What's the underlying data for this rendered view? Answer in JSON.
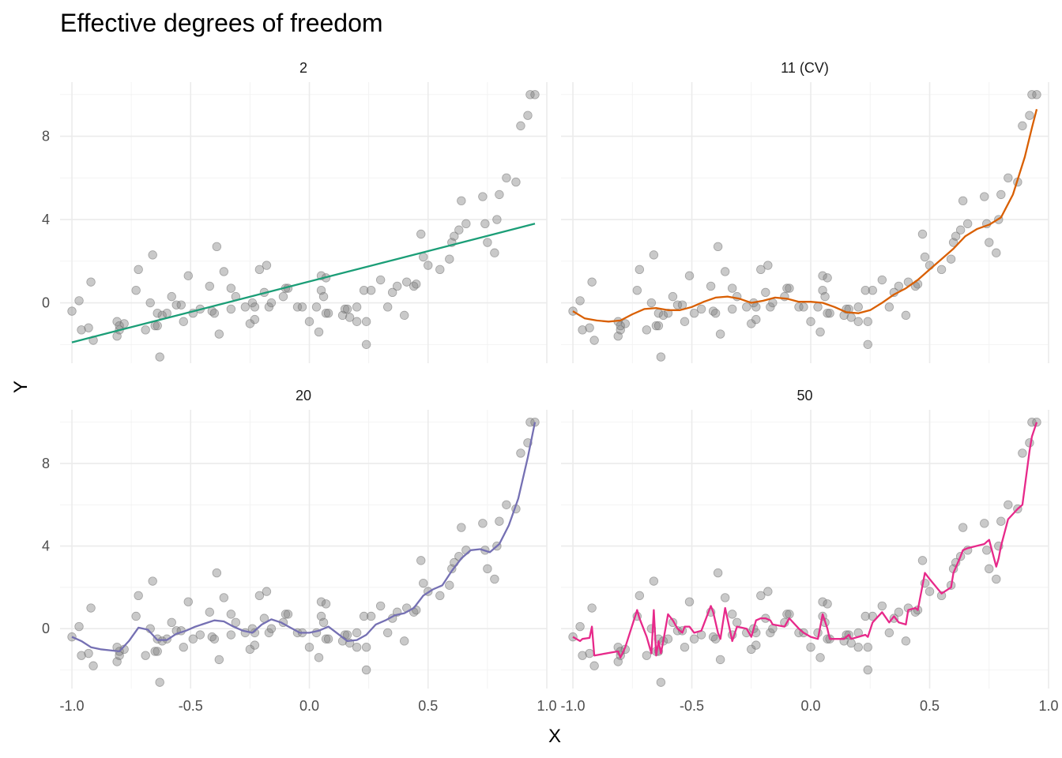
{
  "chart_data": {
    "type": "scatter",
    "title": "Effective degrees of freedom",
    "xlabel": "X",
    "ylabel": "Y",
    "xlim": [
      -1.05,
      1.0
    ],
    "ylim": [
      -2.9,
      10.6
    ],
    "x_ticks": [
      -1.0,
      -0.5,
      0.0,
      0.5,
      1.0
    ],
    "x_tick_labels": [
      "-1.0",
      "-0.5",
      "0.0",
      "0.5",
      "1.0"
    ],
    "y_ticks": [
      0,
      4,
      8
    ],
    "y_tick_labels": [
      "0",
      "4",
      "8"
    ],
    "grid": true,
    "legend": "none",
    "points": {
      "x": [
        -1.0,
        -0.97,
        -0.96,
        -0.93,
        -0.92,
        -0.91,
        -0.81,
        -0.81,
        -0.8,
        -0.8,
        -0.78,
        -0.73,
        -0.72,
        -0.69,
        -0.67,
        -0.66,
        -0.65,
        -0.64,
        -0.64,
        -0.63,
        -0.62,
        -0.6,
        -0.58,
        -0.56,
        -0.54,
        -0.53,
        -0.51,
        -0.49,
        -0.46,
        -0.42,
        -0.41,
        -0.4,
        -0.39,
        -0.38,
        -0.36,
        -0.33,
        -0.33,
        -0.31,
        -0.27,
        -0.25,
        -0.24,
        -0.23,
        -0.23,
        -0.21,
        -0.19,
        -0.18,
        -0.17,
        -0.16,
        -0.11,
        -0.1,
        -0.09,
        -0.05,
        -0.03,
        -0.0,
        0.03,
        0.04,
        0.05,
        0.05,
        0.06,
        0.07,
        0.07,
        0.08,
        0.14,
        0.15,
        0.16,
        0.17,
        0.2,
        0.2,
        0.23,
        0.24,
        0.24,
        0.26,
        0.3,
        0.33,
        0.35,
        0.37,
        0.4,
        0.41,
        0.44,
        0.45,
        0.47,
        0.48,
        0.5,
        0.55,
        0.59,
        0.6,
        0.61,
        0.63,
        0.64,
        0.66,
        0.73,
        0.74,
        0.75,
        0.78,
        0.79,
        0.8,
        0.83,
        0.87,
        0.89,
        0.92,
        0.93,
        0.95
      ],
      "y": [
        -0.4,
        0.1,
        -1.3,
        -1.2,
        1.0,
        -1.8,
        -1.6,
        -0.9,
        -1.3,
        -1.1,
        -1.0,
        0.6,
        1.6,
        -1.3,
        0.0,
        2.3,
        -1.1,
        -1.1,
        -0.5,
        -2.6,
        -0.6,
        -0.5,
        0.3,
        -0.1,
        -0.1,
        -0.9,
        1.3,
        -0.5,
        -0.3,
        0.8,
        -0.4,
        -0.5,
        2.7,
        -1.5,
        1.5,
        -0.3,
        0.7,
        0.3,
        -0.2,
        -1.0,
        0.0,
        -0.2,
        -0.8,
        1.6,
        0.5,
        1.8,
        -0.2,
        0.0,
        0.3,
        0.7,
        0.7,
        -0.2,
        -0.2,
        -0.9,
        -0.2,
        -1.4,
        1.3,
        0.6,
        0.3,
        1.2,
        -0.5,
        -0.5,
        -0.6,
        -0.3,
        -0.3,
        -0.7,
        -0.2,
        -0.9,
        0.6,
        -2.0,
        -0.9,
        0.6,
        1.1,
        -0.2,
        0.5,
        0.8,
        -0.6,
        1.0,
        0.8,
        0.9,
        3.3,
        2.2,
        1.8,
        1.6,
        2.1,
        2.9,
        3.2,
        3.5,
        4.9,
        3.8,
        5.1,
        3.8,
        2.9,
        2.4,
        4.0,
        5.2,
        6.0,
        5.8,
        8.5,
        9.0,
        10.0,
        10.0
      ]
    },
    "facets": [
      {
        "label": "2",
        "color": "#1b9e77",
        "fit_x": [
          -1.0,
          0.95
        ],
        "fit_y": [
          -1.9,
          3.8
        ]
      },
      {
        "label": "11 (CV)",
        "color": "#d95f02",
        "fit_x": [
          -1.0,
          -0.95,
          -0.9,
          -0.85,
          -0.8,
          -0.75,
          -0.7,
          -0.65,
          -0.6,
          -0.55,
          -0.5,
          -0.45,
          -0.4,
          -0.35,
          -0.3,
          -0.25,
          -0.2,
          -0.15,
          -0.1,
          -0.05,
          0.0,
          0.05,
          0.1,
          0.15,
          0.2,
          0.25,
          0.3,
          0.35,
          0.4,
          0.45,
          0.5,
          0.55,
          0.6,
          0.65,
          0.7,
          0.75,
          0.8,
          0.85,
          0.9,
          0.93,
          0.95
        ],
        "fit_y": [
          -0.4,
          -0.75,
          -0.85,
          -0.9,
          -0.85,
          -0.55,
          -0.3,
          -0.25,
          -0.35,
          -0.35,
          -0.2,
          0.05,
          0.25,
          0.3,
          0.2,
          0.0,
          0.1,
          0.25,
          0.2,
          0.05,
          0.05,
          0.0,
          -0.2,
          -0.45,
          -0.5,
          -0.35,
          0.0,
          0.4,
          0.7,
          1.1,
          1.6,
          2.1,
          2.6,
          3.2,
          3.55,
          3.75,
          4.1,
          5.2,
          7.0,
          8.4,
          9.3
        ]
      },
      {
        "label": "20",
        "color": "#7570b3",
        "fit_x": [
          -1.0,
          -0.96,
          -0.92,
          -0.88,
          -0.84,
          -0.8,
          -0.76,
          -0.72,
          -0.68,
          -0.64,
          -0.6,
          -0.56,
          -0.52,
          -0.48,
          -0.44,
          -0.4,
          -0.36,
          -0.32,
          -0.28,
          -0.24,
          -0.2,
          -0.16,
          -0.12,
          -0.08,
          -0.04,
          0.0,
          0.04,
          0.08,
          0.12,
          0.16,
          0.2,
          0.24,
          0.28,
          0.32,
          0.36,
          0.4,
          0.44,
          0.48,
          0.52,
          0.56,
          0.6,
          0.64,
          0.68,
          0.72,
          0.76,
          0.8,
          0.84,
          0.88,
          0.92,
          0.95
        ],
        "fit_y": [
          -0.4,
          -0.6,
          -0.9,
          -1.0,
          -1.05,
          -1.1,
          -0.6,
          0.05,
          -0.05,
          -0.55,
          -0.55,
          -0.25,
          -0.1,
          0.1,
          0.25,
          0.4,
          0.35,
          0.1,
          -0.1,
          -0.2,
          0.2,
          0.45,
          0.3,
          0.05,
          -0.2,
          -0.2,
          -0.1,
          0.1,
          -0.25,
          -0.6,
          -0.55,
          -0.3,
          0.2,
          0.4,
          0.65,
          0.75,
          1.0,
          1.6,
          1.9,
          2.1,
          2.8,
          3.4,
          3.8,
          3.85,
          3.7,
          4.1,
          5.0,
          6.3,
          8.3,
          10.0
        ]
      },
      {
        "label": "50",
        "color": "#e7298a",
        "fit_x": [
          -1.0,
          -0.97,
          -0.96,
          -0.93,
          -0.92,
          -0.91,
          -0.81,
          -0.8,
          -0.78,
          -0.73,
          -0.72,
          -0.69,
          -0.67,
          -0.66,
          -0.65,
          -0.64,
          -0.63,
          -0.62,
          -0.6,
          -0.58,
          -0.56,
          -0.54,
          -0.53,
          -0.51,
          -0.49,
          -0.46,
          -0.42,
          -0.41,
          -0.39,
          -0.38,
          -0.36,
          -0.33,
          -0.31,
          -0.27,
          -0.25,
          -0.23,
          -0.21,
          -0.19,
          -0.17,
          -0.16,
          -0.11,
          -0.09,
          -0.05,
          -0.03,
          0.0,
          0.03,
          0.05,
          0.07,
          0.08,
          0.14,
          0.16,
          0.17,
          0.2,
          0.23,
          0.24,
          0.26,
          0.3,
          0.33,
          0.35,
          0.37,
          0.4,
          0.41,
          0.44,
          0.45,
          0.47,
          0.48,
          0.5,
          0.55,
          0.59,
          0.6,
          0.63,
          0.64,
          0.66,
          0.73,
          0.74,
          0.75,
          0.78,
          0.79,
          0.8,
          0.83,
          0.87,
          0.89,
          0.92,
          0.93,
          0.95
        ],
        "fit_y": [
          -0.4,
          -0.6,
          -0.5,
          -0.45,
          0.1,
          -1.3,
          -1.1,
          -1.4,
          -0.9,
          0.9,
          0.5,
          -0.4,
          -1.2,
          0.9,
          -1.3,
          -0.6,
          -1.2,
          -0.6,
          0.7,
          0.4,
          0.0,
          -0.2,
          0.1,
          0.1,
          -0.2,
          -0.1,
          1.1,
          0.8,
          -0.2,
          -0.5,
          1.0,
          -0.6,
          0.1,
          0.0,
          -0.4,
          0.4,
          0.5,
          0.5,
          0.4,
          0.2,
          0.1,
          0.5,
          0.0,
          -0.2,
          -0.4,
          -0.5,
          0.7,
          0.0,
          -0.5,
          -0.5,
          -0.3,
          -0.5,
          -0.4,
          -0.3,
          -0.4,
          0.3,
          0.8,
          0.3,
          0.6,
          0.3,
          0.2,
          0.9,
          1.0,
          0.9,
          2.1,
          2.7,
          2.4,
          1.7,
          2.0,
          2.7,
          3.5,
          3.8,
          3.9,
          4.1,
          4.2,
          4.3,
          3.0,
          3.4,
          4.0,
          5.3,
          5.8,
          6.0,
          8.6,
          9.3,
          10.0
        ]
      }
    ]
  }
}
